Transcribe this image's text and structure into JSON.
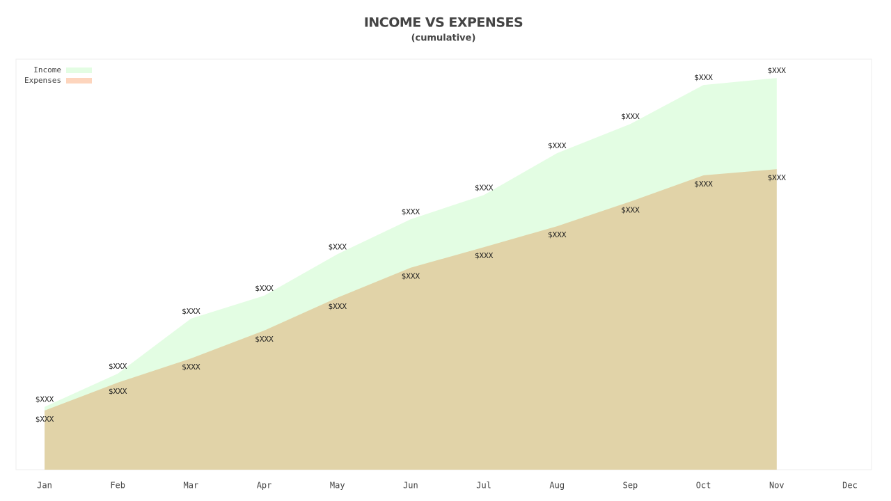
{
  "chart_data": {
    "type": "area",
    "title": "INCOME VS EXPENSES",
    "subtitle": "(cumulative)",
    "categories": [
      "Jan",
      "Feb",
      "Mar",
      "Apr",
      "May",
      "Jun",
      "Jul",
      "Aug",
      "Sep",
      "Oct",
      "Nov",
      "Dec"
    ],
    "ylim": [
      0,
      100
    ],
    "legend": "top-left",
    "series": [
      {
        "name": "Income",
        "color": "#e3fde3",
        "values": [
          15.3,
          23.4,
          36.8,
          42.4,
          52.5,
          61.0,
          66.9,
          77.1,
          84.2,
          93.7,
          95.4,
          null
        ],
        "value_labels": [
          "$XXX",
          "$XXX",
          "$XXX",
          "$XXX",
          "$XXX",
          "$XXX",
          "$XXX",
          "$XXX",
          "$XXX",
          "$XXX",
          "$XXX",
          null
        ]
      },
      {
        "name": "Expenses",
        "color": "#fdd5bd",
        "values": [
          14.4,
          21.2,
          27.1,
          33.9,
          41.9,
          49.2,
          54.2,
          59.3,
          65.3,
          71.7,
          73.2,
          null
        ],
        "value_labels": [
          "$XXX",
          "$XXX",
          "$XXX",
          "$XXX",
          "$XXX",
          "$XXX",
          "$XXX",
          "$XXX",
          "$XXX",
          "$XXX",
          "$XXX",
          null
        ]
      }
    ]
  }
}
